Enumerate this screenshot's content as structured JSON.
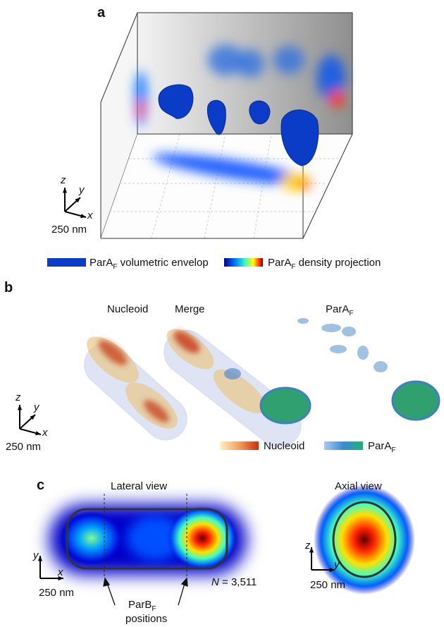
{
  "panel_a": {
    "label": "a",
    "axes": {
      "z": "z",
      "y": "y",
      "x": "x",
      "scale": "250 nm"
    },
    "legend": [
      {
        "text": "ParA",
        "sub": "F",
        "rest": " volumetric envelop"
      },
      {
        "text": "ParA",
        "sub": "F",
        "rest": " density projection"
      }
    ]
  },
  "panel_b": {
    "label": "b",
    "titles": [
      {
        "text": "Nucleoid"
      },
      {
        "text": "Merge"
      },
      {
        "text": "ParA",
        "sub": "F"
      }
    ],
    "axes": {
      "z": "z",
      "y": "y",
      "x": "x",
      "scale": "250 nm"
    },
    "legend": [
      {
        "text": "Nucleoid"
      },
      {
        "text": "ParA",
        "sub": "F"
      }
    ]
  },
  "panel_c": {
    "label": "c",
    "titles": [
      "Lateral view",
      "Axial view"
    ],
    "lateral_axes": {
      "y": "y",
      "x": "x",
      "scale": "250 nm"
    },
    "axial_axes": {
      "z": "z",
      "y": "y",
      "scale": "250 nm"
    },
    "count": {
      "symbol": "N",
      "rest": " = 3,511"
    },
    "annotation": {
      "text": "ParB",
      "sub": "F",
      "line2": "positions"
    }
  }
}
